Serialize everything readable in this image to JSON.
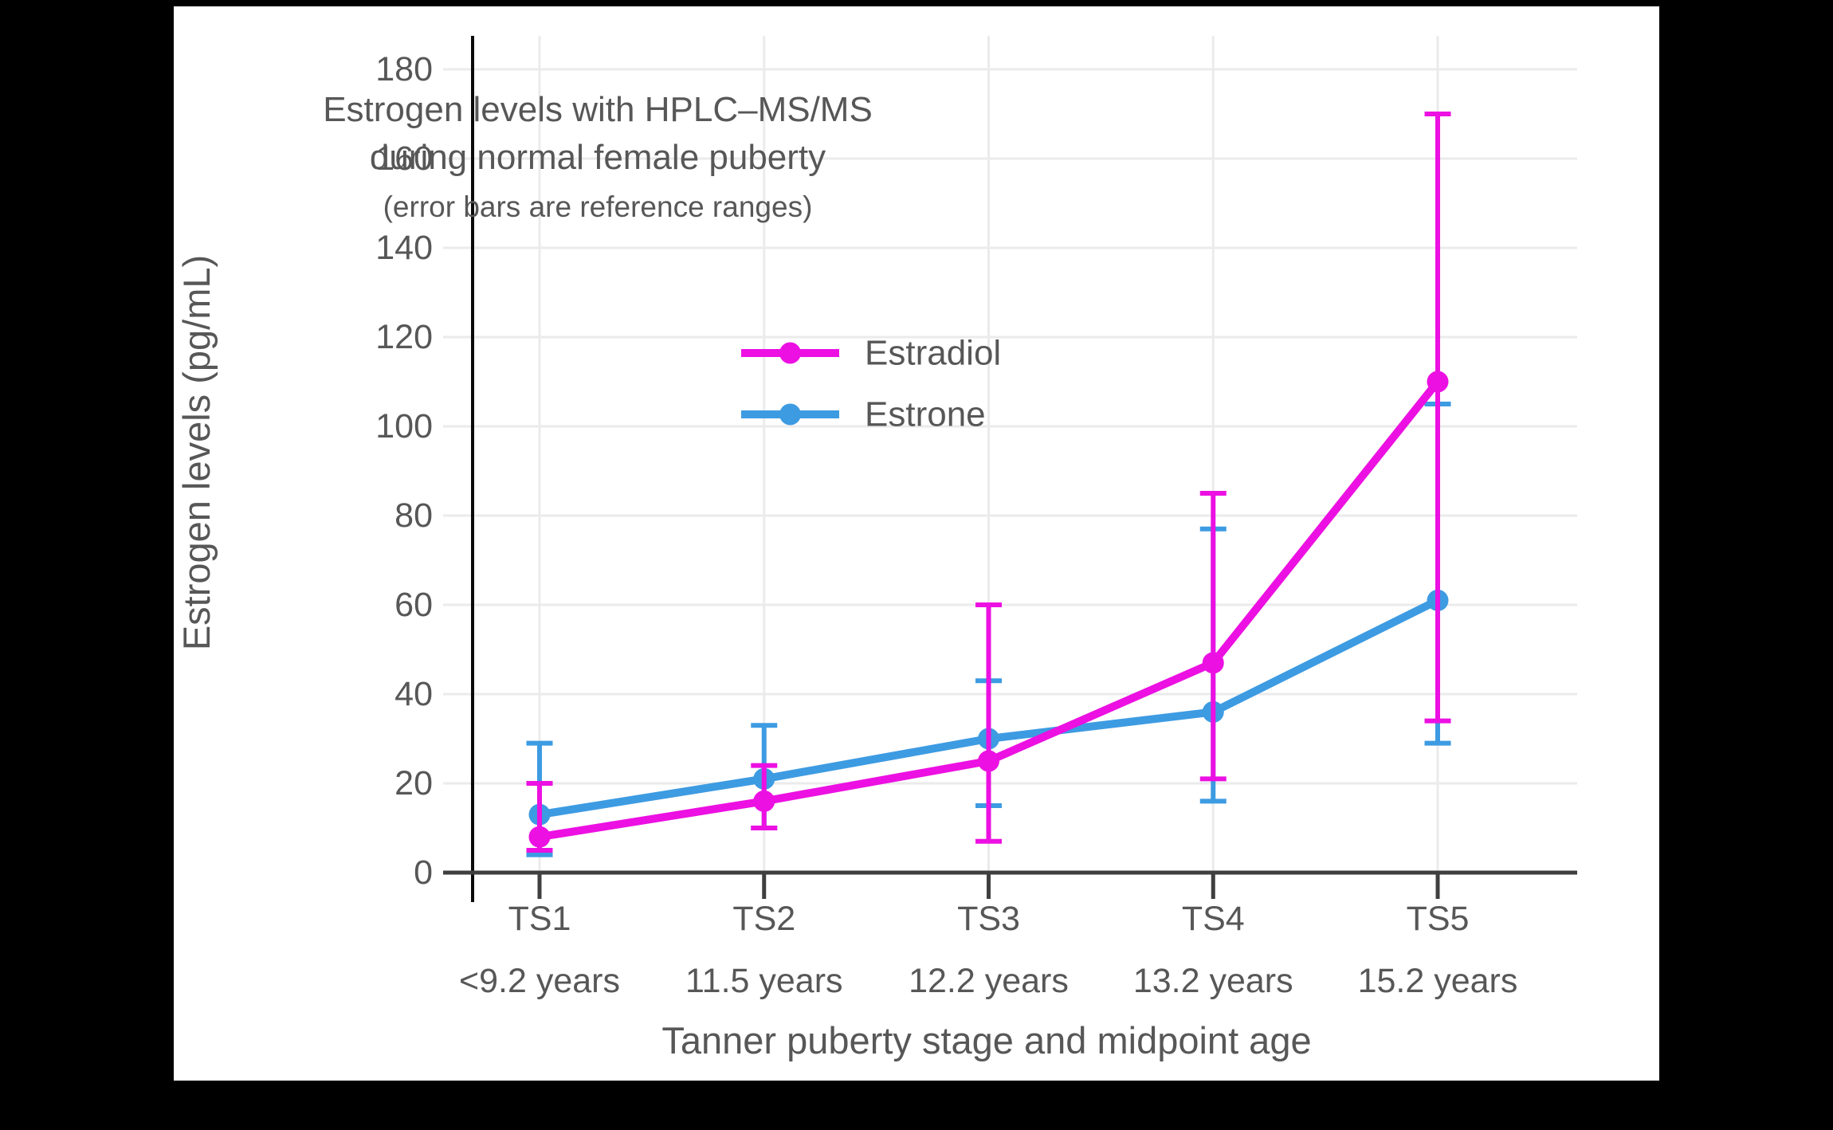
{
  "chart": {
    "title_line1": "Estrogen levels with HPLC–MS/MS",
    "title_line2": "during normal female puberty",
    "subtitle": "(error bars are reference ranges)",
    "y_axis_title": "Estrogen levels (pg/mL)",
    "x_axis_title": "Tanner puberty stage and midpoint age"
  },
  "chart_data": {
    "type": "line",
    "title": "Estrogen levels with HPLC–MS/MS during normal female puberty",
    "subtitle": "(error bars are reference ranges)",
    "xlabel": "Tanner puberty stage and midpoint age",
    "ylabel": "Estrogen levels (pg/mL)",
    "categories": [
      "TS1",
      "TS2",
      "TS3",
      "TS4",
      "TS5"
    ],
    "category_sublabels": [
      "<9.2 years",
      "11.5 years",
      "12.2 years",
      "13.2 years",
      "15.2 years"
    ],
    "y_ticks": [
      "0",
      "20",
      "40",
      "60",
      "80",
      "100",
      "120",
      "140",
      "160",
      "180"
    ],
    "y_tick_values": [
      0,
      20,
      40,
      60,
      80,
      100,
      120,
      140,
      160,
      180
    ],
    "ylim": [
      0,
      187
    ],
    "grid": "on",
    "legend_position": "upper-left-inside",
    "legend_order": [
      1,
      0
    ],
    "series": [
      {
        "name": "Estrone",
        "color": "#3D9BE2",
        "values": [
          13,
          21,
          30,
          36,
          61
        ],
        "err_low": [
          4,
          10,
          15,
          16,
          29
        ],
        "err_high": [
          29,
          33,
          43,
          77,
          105
        ]
      },
      {
        "name": "Estradiol",
        "color": "#EC10E2",
        "values": [
          8,
          16,
          25,
          47,
          110
        ],
        "err_low": [
          5,
          10,
          7,
          21,
          34
        ],
        "err_high": [
          20,
          24,
          60,
          85,
          170
        ]
      }
    ],
    "colors": {
      "text": "#575757",
      "gridline": "#EBEBEB",
      "axis_line": "#3F3F3F",
      "spine": "#0A0A0A",
      "background": "#FFFFFF",
      "frame": "#000000"
    }
  }
}
